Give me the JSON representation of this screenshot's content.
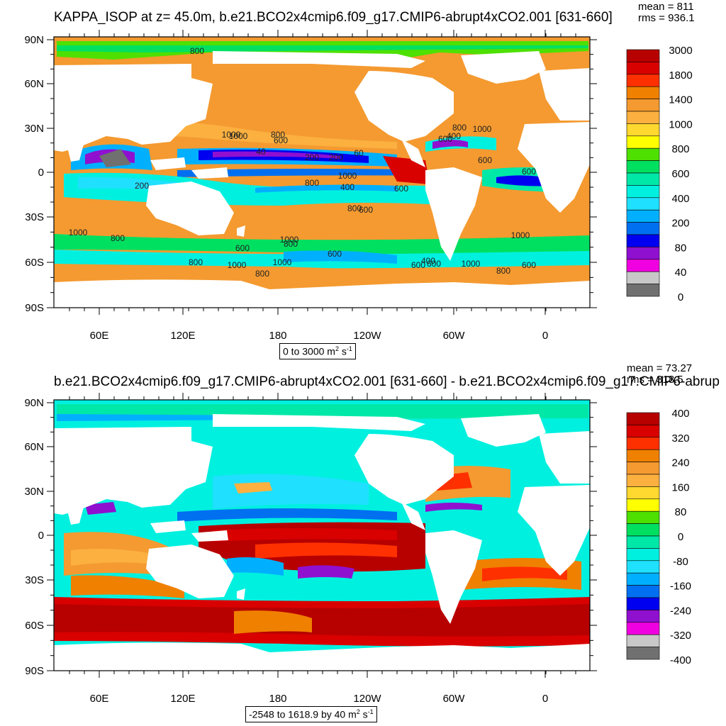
{
  "panels": [
    {
      "title": "KAPPA_ISOP at z=  45.0m, b.e21.BCO2x4cmip6.f09_g17.CMIP6-abrupt4xCO2.001 [631-660]",
      "mean_label": "mean = 811",
      "rms_label": "rms = 936.1",
      "lat_labels": [
        "90N",
        "60N",
        "30N",
        "0",
        "30S",
        "60S",
        "90S"
      ],
      "lon_labels": [
        "60E",
        "120E",
        "180",
        "120W",
        "60W",
        "0"
      ],
      "units_prefix": "0 to 3000 m",
      "colorbar": {
        "labels": [
          "3000",
          "1800",
          "1400",
          "1000",
          "800",
          "600",
          "400",
          "200",
          "80",
          "40",
          "0"
        ],
        "colors": [
          "#b70000",
          "#d90000",
          "#ff3000",
          "#f08000",
          "#f49a30",
          "#fbb040",
          "#ffd830",
          "#ffff00",
          "#4ee000",
          "#00e060",
          "#00e8a8",
          "#00f0e0",
          "#20e0ff",
          "#00b0ff",
          "#0070f0",
          "#0000f0",
          "#9010d0",
          "#f000e0",
          "#c8c8c8",
          "#707070"
        ]
      },
      "contour_labels": [
        "800",
        "1000",
        "800",
        "600",
        "200",
        "40",
        "60",
        "200",
        "1000",
        "800",
        "400",
        "1000",
        "600",
        "800",
        "600",
        "600",
        "200",
        "800",
        "1000",
        "400",
        "600",
        "800",
        "1000",
        "1000",
        "800",
        "600",
        "1000",
        "600",
        "400",
        "800",
        "1000",
        "800",
        "600",
        "600",
        "1000",
        "600",
        "1000",
        "800",
        "600"
      ]
    },
    {
      "title": "b.e21.BCO2x4cmip6.f09_g17.CMIP6-abrupt4xCO2.001 [631-660] - b.e21.BCO2x4cmip6.f09_g17.CMIP6-abrup",
      "mean_label": "mean = 73.27",
      "rms_label": "rms = 318.5",
      "lat_labels": [
        "90N",
        "60N",
        "30N",
        "0",
        "30S",
        "60S",
        "90S"
      ],
      "lon_labels": [
        "60E",
        "120E",
        "180",
        "120W",
        "60W",
        "0"
      ],
      "units_prefix": "-2548 to 1618.9 by 40 m",
      "colorbar": {
        "labels": [
          "400",
          "320",
          "240",
          "160",
          "80",
          "0",
          "-80",
          "-160",
          "-240",
          "-320",
          "-400"
        ],
        "colors": [
          "#b70000",
          "#d90000",
          "#ff3000",
          "#f08000",
          "#f49a30",
          "#fbb040",
          "#ffd830",
          "#ffff00",
          "#4ee000",
          "#00e060",
          "#00e8a8",
          "#00f0e0",
          "#20e0ff",
          "#00b0ff",
          "#0070f0",
          "#0000f0",
          "#9010d0",
          "#f000e0",
          "#c8c8c8",
          "#707070"
        ]
      }
    }
  ],
  "units_suffix": "2",
  "units_tail": " s",
  "units_exp": "-1"
}
